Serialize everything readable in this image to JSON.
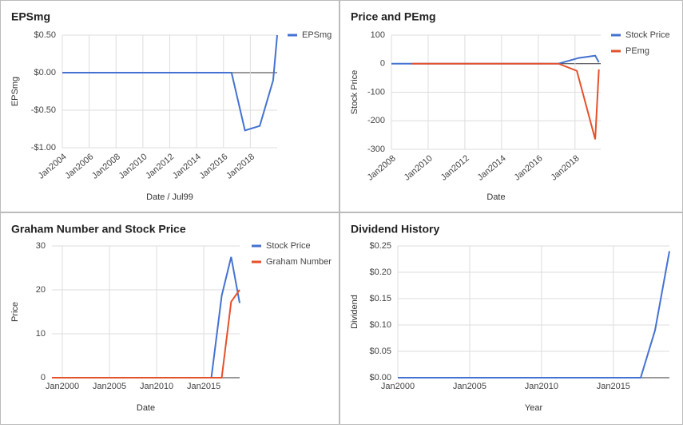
{
  "chart_data": [
    {
      "type": "line",
      "title": "EPSmg",
      "xlabel": "Date / Jul99",
      "ylabel": "EPSmg",
      "xlim": [
        2004,
        2020
      ],
      "ylim": [
        -1,
        0.5
      ],
      "xticks": [
        {
          "value": 2004,
          "label": "Jan2004"
        },
        {
          "value": 2006,
          "label": "Jan2006"
        },
        {
          "value": 2008,
          "label": "Jan2008"
        },
        {
          "value": 2010,
          "label": "Jan2010"
        },
        {
          "value": 2012,
          "label": "Jan2012"
        },
        {
          "value": 2014,
          "label": "Jan2014"
        },
        {
          "value": 2016,
          "label": "Jan2016"
        },
        {
          "value": 2018,
          "label": "Jan2018"
        }
      ],
      "yticks": [
        {
          "value": 0.5,
          "label": "$0.50"
        },
        {
          "value": 0,
          "label": "$0.00"
        },
        {
          "value": -0.5,
          "label": "-$0.50"
        },
        {
          "value": -1,
          "label": "-$1.00"
        }
      ],
      "grid": true,
      "legend": "right",
      "series": [
        {
          "name": "EPSmg",
          "color": "#4472d0",
          "x": [
            2004,
            2016.6,
            2017.6,
            2018.7,
            2019.7,
            2020
          ],
          "values": [
            0,
            0,
            -0.77,
            -0.71,
            -0.1,
            0.5
          ]
        }
      ]
    },
    {
      "type": "line",
      "title": "Price and PEmg",
      "xlabel": "Date",
      "ylabel": "Stock Price",
      "xlim": [
        2008,
        2019.4
      ],
      "ylim": [
        -300,
        100
      ],
      "xticks": [
        {
          "value": 2008,
          "label": "Jan2008"
        },
        {
          "value": 2010,
          "label": "Jan2010"
        },
        {
          "value": 2012,
          "label": "Jan2012"
        },
        {
          "value": 2014,
          "label": "Jan2014"
        },
        {
          "value": 2016,
          "label": "Jan2016"
        },
        {
          "value": 2018,
          "label": "Jan2018"
        }
      ],
      "yticks": [
        100,
        0,
        -100,
        -200,
        -300
      ],
      "grid": true,
      "legend": "right",
      "series": [
        {
          "name": "Stock Price",
          "color": "#4472d0",
          "x": [
            2008,
            2017.1,
            2018.2,
            2019.1,
            2019.3
          ],
          "values": [
            0,
            0,
            20,
            28,
            5
          ]
        },
        {
          "name": "PEmg",
          "color": "#e5512a",
          "x": [
            2009.1,
            2017.1,
            2018.1,
            2019.1,
            2019.3
          ],
          "values": [
            0,
            0,
            -25,
            -265,
            -20
          ]
        }
      ]
    },
    {
      "type": "line",
      "title": "Graham Number and Stock Price",
      "xlabel": "Date",
      "ylabel": "Price",
      "xlim": [
        1998.9,
        2018.8
      ],
      "ylim": [
        0,
        30
      ],
      "xticks": [
        {
          "value": 2000,
          "label": "Jan2000"
        },
        {
          "value": 2005,
          "label": "Jan2005"
        },
        {
          "value": 2010,
          "label": "Jan2010"
        },
        {
          "value": 2015,
          "label": "Jan2015"
        }
      ],
      "yticks": [
        0,
        10,
        20,
        30
      ],
      "grid": true,
      "legend": "right",
      "series": [
        {
          "name": "Stock Price",
          "color": "#4472d0",
          "x": [
            1998.9,
            2015.8,
            2016.9,
            2017.9,
            2018.8
          ],
          "values": [
            0,
            0,
            18.7,
            27.5,
            17
          ]
        },
        {
          "name": "Graham Number",
          "color": "#e5512a",
          "x": [
            1998.9,
            2016.9,
            2017.9,
            2018.8
          ],
          "values": [
            0,
            0,
            17.3,
            20
          ]
        }
      ]
    },
    {
      "type": "line",
      "title": "Dividend History",
      "xlabel": "Year",
      "ylabel": "Dividend",
      "xlim": [
        2000,
        2018.9
      ],
      "ylim": [
        0,
        0.25
      ],
      "xticks": [
        {
          "value": 2000,
          "label": "Jan2000"
        },
        {
          "value": 2005,
          "label": "Jan2005"
        },
        {
          "value": 2010,
          "label": "Jan2010"
        },
        {
          "value": 2015,
          "label": "Jan2015"
        }
      ],
      "yticks": [
        {
          "value": 0.25,
          "label": "$0.25"
        },
        {
          "value": 0.2,
          "label": "$0.20"
        },
        {
          "value": 0.15,
          "label": "$0.15"
        },
        {
          "value": 0.1,
          "label": "$0.10"
        },
        {
          "value": 0.05,
          "label": "$0.05"
        },
        {
          "value": 0,
          "label": "$0.00"
        }
      ],
      "grid": true,
      "color": "#4472d0",
      "x": [
        2000,
        2016.9,
        2017.9,
        2018.9
      ],
      "values": [
        0,
        0,
        0.09,
        0.24
      ]
    }
  ]
}
